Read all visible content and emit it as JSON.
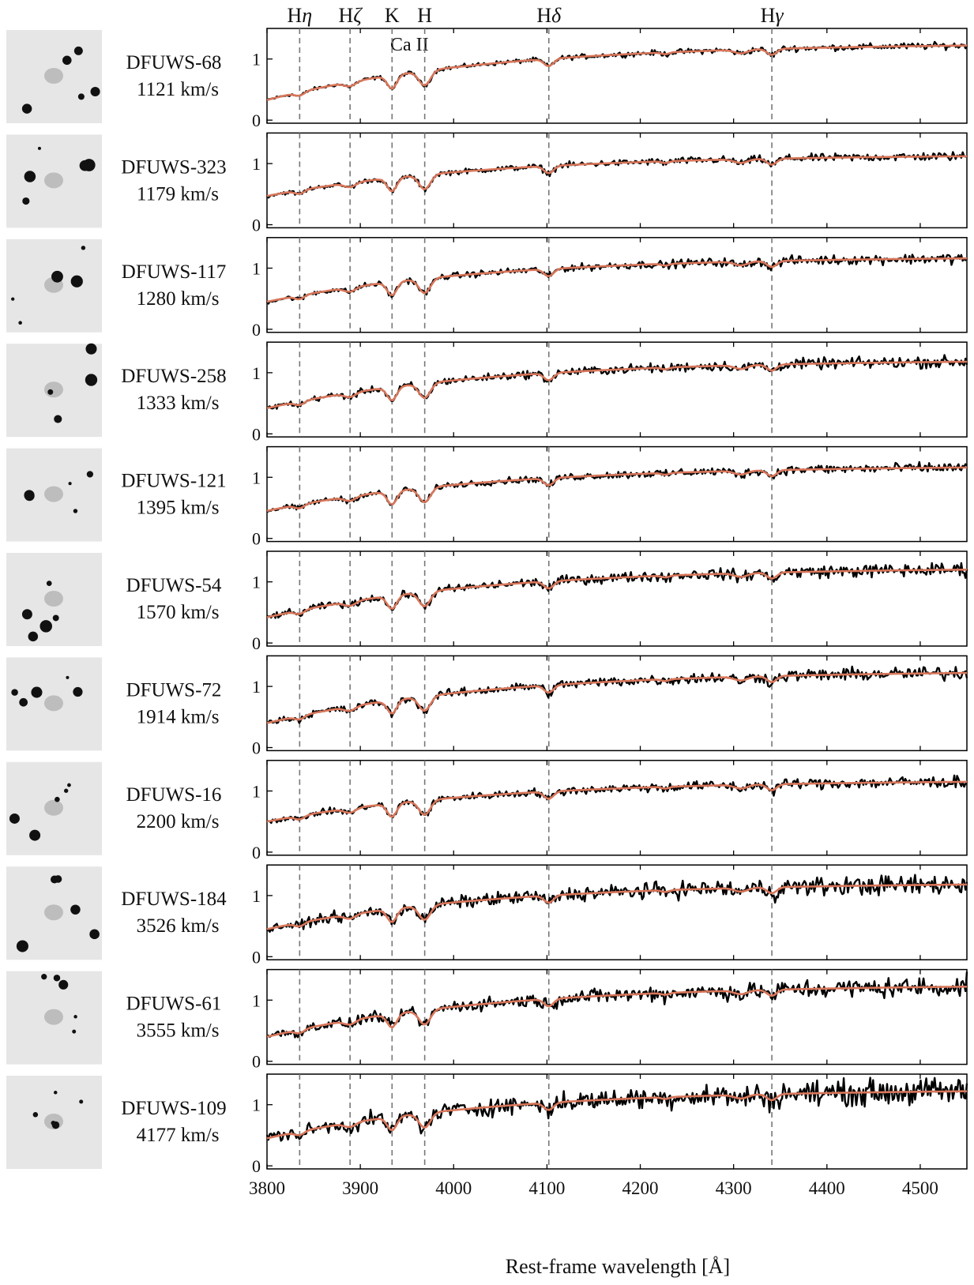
{
  "chart_data": {
    "type": "line",
    "xlabel": "Rest-frame wavelength [Å]",
    "xlim": [
      3800,
      4550
    ],
    "xticks": [
      3800,
      3900,
      4000,
      4100,
      4200,
      4300,
      4400,
      4500
    ],
    "ylim": [
      -0.05,
      1.5
    ],
    "yticks": [
      0,
      1
    ],
    "grid": false,
    "series_colors": {
      "observed": "#000000",
      "model": "#d9765a"
    },
    "lines": [
      {
        "top_labels": [
          "H",
          "η"
        ],
        "bottom_label": "",
        "wavelength": 3835
      },
      {
        "top_labels": [
          "H",
          "ζ"
        ],
        "bottom_label": "",
        "wavelength": 3889
      },
      {
        "top_labels": [
          "K",
          ""
        ],
        "bottom_label": "Ca II",
        "wavelength": 3934
      },
      {
        "top_labels": [
          "H",
          ""
        ],
        "bottom_label": "",
        "wavelength": 3969
      },
      {
        "top_labels": [
          "H",
          "δ"
        ],
        "bottom_label": "",
        "wavelength": 4102
      },
      {
        "top_labels": [
          "H",
          "γ"
        ],
        "bottom_label": "",
        "wavelength": 4341
      }
    ],
    "panels": [
      {
        "name": "DFUWS-68",
        "velocity": "1121 km/s",
        "start": 0.33,
        "end": 1.22,
        "noise": 0.02
      },
      {
        "name": "DFUWS-323",
        "velocity": "1179 km/s",
        "start": 0.47,
        "end": 1.12,
        "noise": 0.025
      },
      {
        "name": "DFUWS-117",
        "velocity": "1280 km/s",
        "start": 0.45,
        "end": 1.16,
        "noise": 0.03
      },
      {
        "name": "DFUWS-258",
        "velocity": "1333 km/s",
        "start": 0.42,
        "end": 1.18,
        "noise": 0.035
      },
      {
        "name": "DFUWS-121",
        "velocity": "1395 km/s",
        "start": 0.45,
        "end": 1.16,
        "noise": 0.03
      },
      {
        "name": "DFUWS-54",
        "velocity": "1570 km/s",
        "start": 0.42,
        "end": 1.2,
        "noise": 0.04
      },
      {
        "name": "DFUWS-72",
        "velocity": "1914 km/s",
        "start": 0.4,
        "end": 1.22,
        "noise": 0.04
      },
      {
        "name": "DFUWS-16",
        "velocity": "2200 km/s",
        "start": 0.5,
        "end": 1.15,
        "noise": 0.035
      },
      {
        "name": "DFUWS-184",
        "velocity": "3526 km/s",
        "start": 0.45,
        "end": 1.18,
        "noise": 0.06
      },
      {
        "name": "DFUWS-61",
        "velocity": "3555 km/s",
        "start": 0.4,
        "end": 1.22,
        "noise": 0.06
      },
      {
        "name": "DFUWS-109",
        "velocity": "4177 km/s",
        "start": 0.45,
        "end": 1.22,
        "noise": 0.08
      }
    ]
  }
}
